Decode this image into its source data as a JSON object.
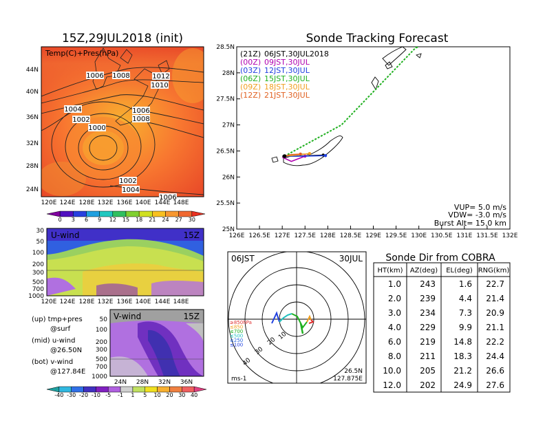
{
  "map_panel": {
    "title": "15Z,29JUL2018 (init)",
    "field_label": "Temp(C)+Pres(hPa)",
    "lat_labels": [
      "44N",
      "40N",
      "36N",
      "32N",
      "28N",
      "24N"
    ],
    "lon_labels": [
      "120E",
      "124E",
      "128E",
      "132E",
      "136E",
      "140E",
      "144E",
      "148E"
    ],
    "pressure_labels": [
      "1006",
      "1008",
      "1012",
      "1010",
      "1004",
      "1002",
      "1000",
      "1006",
      "1008",
      "1002",
      "1004",
      "1006"
    ],
    "colorbar_ticks": [
      "0",
      "3",
      "6",
      "9",
      "12",
      "15",
      "18",
      "21",
      "24",
      "27",
      "30"
    ],
    "colorbar_colors": [
      "#8000a0",
      "#5010c0",
      "#2840e0",
      "#20a0e0",
      "#20c8c0",
      "#30c060",
      "#80d030",
      "#d0e020",
      "#f8c020",
      "#f89830",
      "#f06830",
      "#e83020"
    ],
    "icon": "temperature-pressure-map"
  },
  "u_panel": {
    "label": "U-wind",
    "time": "15Z",
    "y_labels": [
      "30",
      "50",
      "100",
      "200",
      "300",
      "500",
      "700",
      "1000"
    ],
    "x_labels": [
      "120E",
      "124E",
      "128E",
      "132E",
      "136E",
      "140E",
      "144E",
      "148E"
    ]
  },
  "v_panel": {
    "label": "V-wind",
    "time": "15Z",
    "y_labels": [
      "50",
      "100",
      "200",
      "300",
      "500",
      "700",
      "1000"
    ],
    "x_labels": [
      "24N",
      "28N",
      "32N",
      "36N"
    ]
  },
  "legend_notes": {
    "up": "(up) tmp+pres",
    "up2": "@surf",
    "mid": "(mid) u-wind",
    "mid2": "@26.50N",
    "bot": "(bot) v-wind",
    "bot2": "@127.84E"
  },
  "wind_colorbar": {
    "ticks": [
      "-40",
      "-30",
      "-20",
      "-10",
      "-5",
      "-1",
      "1",
      "5",
      "10",
      "20",
      "30",
      "40"
    ],
    "colors": [
      "#20a0a0",
      "#30b8e0",
      "#3070e8",
      "#4030c0",
      "#8020c0",
      "#b060e0",
      "#d0d0d0",
      "#c0e060",
      "#f0e020",
      "#f8b030",
      "#f08040",
      "#f06060",
      "#e04080"
    ]
  },
  "tracking": {
    "title": "Sonde Tracking Forecast",
    "entries": [
      {
        "label": "(21Z)",
        "time": "06JST,30JUL2018",
        "color": "#000000"
      },
      {
        "label": "(00Z)",
        "time": "09JST,30JUL",
        "color": "#b000b0"
      },
      {
        "label": "(03Z)",
        "time": "12JST,30JUL",
        "color": "#2040e0"
      },
      {
        "label": "(06Z)",
        "time": "15JST,30JUL",
        "color": "#20b020"
      },
      {
        "label": "(09Z)",
        "time": "18JST,30JUL",
        "color": "#f0a020"
      },
      {
        "label": "(12Z)",
        "time": "21JST,30JUL",
        "color": "#e06020"
      }
    ],
    "lat_labels": [
      "28.5N",
      "28N",
      "27.5N",
      "27N",
      "26.5N",
      "26N",
      "25.5N",
      "25N"
    ],
    "lon_labels": [
      "126E",
      "126.5E",
      "127E",
      "127.5E",
      "128E",
      "128.5E",
      "129E",
      "129.5E",
      "130E",
      "130.5E",
      "131E",
      "131.5E",
      "132E"
    ],
    "params": {
      "vup": "VUP= 5.0 m/s",
      "vdw": "VDW= -3.0 m/s",
      "burst": "Burst Alt= 15.0 km"
    }
  },
  "polar": {
    "time": "06JST",
    "date": "30JUL",
    "ring_labels": [
      "10",
      "20",
      "30",
      "40"
    ],
    "level_labels": [
      {
        "text": "≥850hPa",
        "color": "#e03030"
      },
      {
        "text": "≤850",
        "color": "#f0a020"
      },
      {
        "text": "≤700",
        "color": "#20b020"
      },
      {
        "text": "≤500",
        "color": "#20c0c0"
      },
      {
        "text": "≤250",
        "color": "#2060e0"
      },
      {
        "text": "≤100",
        "color": "#2040e0"
      }
    ],
    "unit": "ms-1",
    "lat": "26.5N",
    "lon": "127.875E"
  },
  "sonde_table": {
    "title": "Sonde Dir from COBRA",
    "headers": [
      "HT(km)",
      "AZ(deg)",
      "EL(deg)",
      "RNG(km)"
    ],
    "rows": [
      [
        "1.0",
        "243",
        "1.6",
        "22.7"
      ],
      [
        "2.0",
        "239",
        "4.4",
        "21.4"
      ],
      [
        "3.0",
        "234",
        "7.3",
        "20.9"
      ],
      [
        "4.0",
        "229",
        "9.9",
        "21.1"
      ],
      [
        "6.0",
        "219",
        "14.8",
        "22.2"
      ],
      [
        "8.0",
        "211",
        "18.3",
        "24.4"
      ],
      [
        "10.0",
        "205",
        "21.2",
        "26.6"
      ],
      [
        "12.0",
        "202",
        "24.9",
        "27.6"
      ]
    ]
  },
  "chart_data": [
    {
      "type": "heatmap",
      "title": "15Z,29JUL2018 (init)",
      "subtitle": "Temp(C)+Pres(hPa)",
      "xlabel": "",
      "ylabel": "",
      "x_ticks": [
        "120E",
        "124E",
        "128E",
        "132E",
        "136E",
        "140E",
        "144E",
        "148E"
      ],
      "y_ticks": [
        "24N",
        "28N",
        "32N",
        "36N",
        "40N",
        "44N"
      ],
      "color_levels": [
        0,
        3,
        6,
        9,
        12,
        15,
        18,
        21,
        24,
        27,
        30
      ],
      "contour_labels_hPa": [
        1000,
        1002,
        1004,
        1006,
        1008,
        1010,
        1012
      ]
    },
    {
      "type": "heatmap",
      "title": "U-wind",
      "subtitle": "15Z",
      "y_ticks_hPa": [
        30,
        50,
        100,
        200,
        300,
        500,
        700,
        1000
      ],
      "x_ticks": [
        "120E",
        "124E",
        "128E",
        "132E",
        "136E",
        "140E",
        "144E",
        "148E"
      ],
      "color_levels": [
        -40,
        -30,
        -20,
        -10,
        -5,
        -1,
        1,
        5,
        10,
        20,
        30,
        40
      ]
    },
    {
      "type": "heatmap",
      "title": "V-wind",
      "subtitle": "15Z",
      "y_ticks_hPa": [
        50,
        100,
        200,
        300,
        500,
        700,
        1000
      ],
      "x_ticks": [
        "24N",
        "28N",
        "32N",
        "36N"
      ],
      "color_levels": [
        -40,
        -30,
        -20,
        -10,
        -5,
        -1,
        1,
        5,
        10,
        20,
        30,
        40
      ]
    },
    {
      "type": "line",
      "title": "Sonde Tracking Forecast",
      "xlim": [
        126,
        132
      ],
      "ylim": [
        25,
        28.5
      ],
      "series": [
        {
          "name": "(21Z)",
          "points": [
            [
              127.0,
              26.4
            ],
            [
              127.3,
              26.4
            ],
            [
              127.9,
              26.42
            ]
          ]
        },
        {
          "name": "(00Z)",
          "points": [
            [
              127.0,
              26.38
            ],
            [
              127.2,
              26.3
            ],
            [
              127.5,
              26.4
            ]
          ]
        },
        {
          "name": "(03Z)",
          "points": [
            [
              127.05,
              26.4
            ],
            [
              127.5,
              26.4
            ],
            [
              127.95,
              26.41
            ]
          ]
        },
        {
          "name": "(06Z)",
          "points": [
            [
              127.05,
              26.4
            ],
            [
              128.3,
              27.0
            ],
            [
              129.95,
              28.5
            ]
          ]
        },
        {
          "name": "(09Z)",
          "points": [
            [
              127.05,
              26.4
            ],
            [
              127.3,
              26.42
            ],
            [
              127.6,
              26.45
            ]
          ]
        },
        {
          "name": "(12Z)",
          "points": [
            [
              127.05,
              26.4
            ],
            [
              127.2,
              26.43
            ],
            [
              127.4,
              26.44
            ]
          ]
        }
      ],
      "launch_point": [
        127.05,
        26.4
      ]
    },
    {
      "type": "table",
      "title": "Sonde Dir from COBRA",
      "columns": [
        "HT(km)",
        "AZ(deg)",
        "EL(deg)",
        "RNG(km)"
      ],
      "rows": [
        [
          1.0,
          243,
          1.6,
          22.7
        ],
        [
          2.0,
          239,
          4.4,
          21.4
        ],
        [
          3.0,
          234,
          7.3,
          20.9
        ],
        [
          4.0,
          229,
          9.9,
          21.1
        ],
        [
          6.0,
          219,
          14.8,
          22.2
        ],
        [
          8.0,
          211,
          18.3,
          24.4
        ],
        [
          10.0,
          205,
          21.2,
          26.6
        ],
        [
          12.0,
          202,
          24.9,
          27.6
        ]
      ]
    }
  ]
}
